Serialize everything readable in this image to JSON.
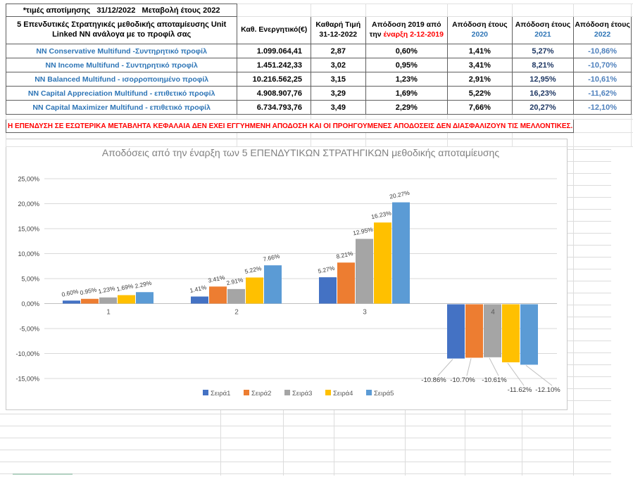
{
  "colors": {
    "fund_name": "#2e75b6",
    "year_header": "#2e75b6",
    "return_2021": "#1f3864",
    "return_2022": "#4f81bd",
    "disclaimer_red": "#ff0000",
    "grid_line": "#d9d9d9",
    "axis_line": "#bfbfbf"
  },
  "sheet": {
    "note": "*τιμές αποτίμησης   31/12/2022   Μεταβολή έτους 2022",
    "table": {
      "main_header": "5 Επενδυτικές Στρατηγικές μεθοδικής αποταμίευσης Unit Linked NN ανάλογα με το προφίλ σας",
      "header": {
        "assets": "Καθ. Ενεργητικό(€)",
        "price1": "Καθαρή Τιμή",
        "price2": "31-12-2022",
        "r2019_1": "Απόδοση 2019 από",
        "r2019_2a": "την ",
        "r2019_2b": "έναρξη 2-12-2019",
        "year_label": "Απόδοση έτους",
        "y2020": "2020",
        "y2021": "2021",
        "y2022": "2022"
      },
      "rows": [
        {
          "name": "NN Conservative Multifund -Συντηρητικό προφίλ",
          "assets": "1.099.064,41",
          "price": "2,87",
          "r2019": "0,60%",
          "r2020": "1,41%",
          "r2021": "5,27%",
          "r2022": "-10,86%"
        },
        {
          "name": "NN Income Multifund - Συντηρητικό προφίλ",
          "assets": "1.451.242,33",
          "price": "3,02",
          "r2019": "0,95%",
          "r2020": "3,41%",
          "r2021": "8,21%",
          "r2022": "-10,70%"
        },
        {
          "name": "NN Balanced Multifund - ισορροποιημένο προφίλ",
          "assets": "10.216.562,25",
          "price": "3,15",
          "r2019": "1,23%",
          "r2020": "2,91%",
          "r2021": "12,95%",
          "r2022": "-10,61%"
        },
        {
          "name": "NN Capital Appreciation Multifund - επιθετικό προφίλ",
          "assets": "4.908.907,76",
          "price": "3,29",
          "r2019": "1,69%",
          "r2020": "5,22%",
          "r2021": "16,23%",
          "r2022": "-11,62%"
        },
        {
          "name": "NN Capital Maximizer Multifund - επιθετικό προφίλ",
          "assets": "6.734.793,76",
          "price": "3,49",
          "r2019": "2,29%",
          "r2020": "7,66%",
          "r2021": "20,27%",
          "r2022": "-12,10%"
        }
      ]
    },
    "disclaimer": "Η ΕΠΕΝΔΥΣΗ ΣΕ ΕΣΩΤΕΡΙΚΑ ΜΕΤΑΒΛΗΤΑ ΚΕΦΑΛΑΙΑ ΔΕΝ ΕΧΕΙ ΕΓΓΥΗΜΕΝΗ ΑΠΟΔΟΣΗ ΚΑΙ ΟΙ ΠΡΟΗΓΟΥΜΕΝΕΣ ΑΠΟΔΟΣΕΙΣ ΔΕΝ ΔΙΑΣΦΑΛΙΖΟΥΝ ΤΙΣ ΜΕΛΛΟΝΤΙΚΕΣ."
  },
  "chart_data": {
    "type": "bar",
    "title": "Αποδόσεις από την έναρξη των 5 ΕΠΕΝΔΥΤΙΚΩΝ  ΣΤΡΑΤΗΓΙΚΩΝ μεθοδικής αποταμίευσης",
    "categories": [
      "1",
      "2",
      "3",
      "4"
    ],
    "series": [
      {
        "name": "Σειρά1",
        "color": "#4472C4",
        "values": [
          0.6,
          1.41,
          5.27,
          -10.86
        ]
      },
      {
        "name": "Σειρά2",
        "color": "#ED7D31",
        "values": [
          0.95,
          3.41,
          8.21,
          -10.7
        ]
      },
      {
        "name": "Σειρά3",
        "color": "#A5A5A5",
        "values": [
          1.23,
          2.91,
          12.95,
          -10.61
        ]
      },
      {
        "name": "Σειρά4",
        "color": "#FFC000",
        "values": [
          1.69,
          5.22,
          16.23,
          -11.62
        ]
      },
      {
        "name": "Σειρά5",
        "color": "#5B9BD5",
        "values": [
          2.29,
          7.66,
          20.27,
          -12.1
        ]
      }
    ],
    "data_labels": {
      "positive_format": "0.00%",
      "examples": [
        "0.60%",
        "1.41%",
        "5.27%",
        "-10.86%",
        "20.27%",
        "-12.10%"
      ]
    },
    "xlabel": "",
    "ylabel": "",
    "ylim": [
      -15,
      25
    ],
    "y_tick_step": 5,
    "y_tick_labels": [
      "25,00%",
      "20,00%",
      "15,00%",
      "10,00%",
      "5,00%",
      "0,00%",
      "-5,00%",
      "-10,00%",
      "-15,00%"
    ],
    "grid": true,
    "legend_position": "bottom"
  }
}
